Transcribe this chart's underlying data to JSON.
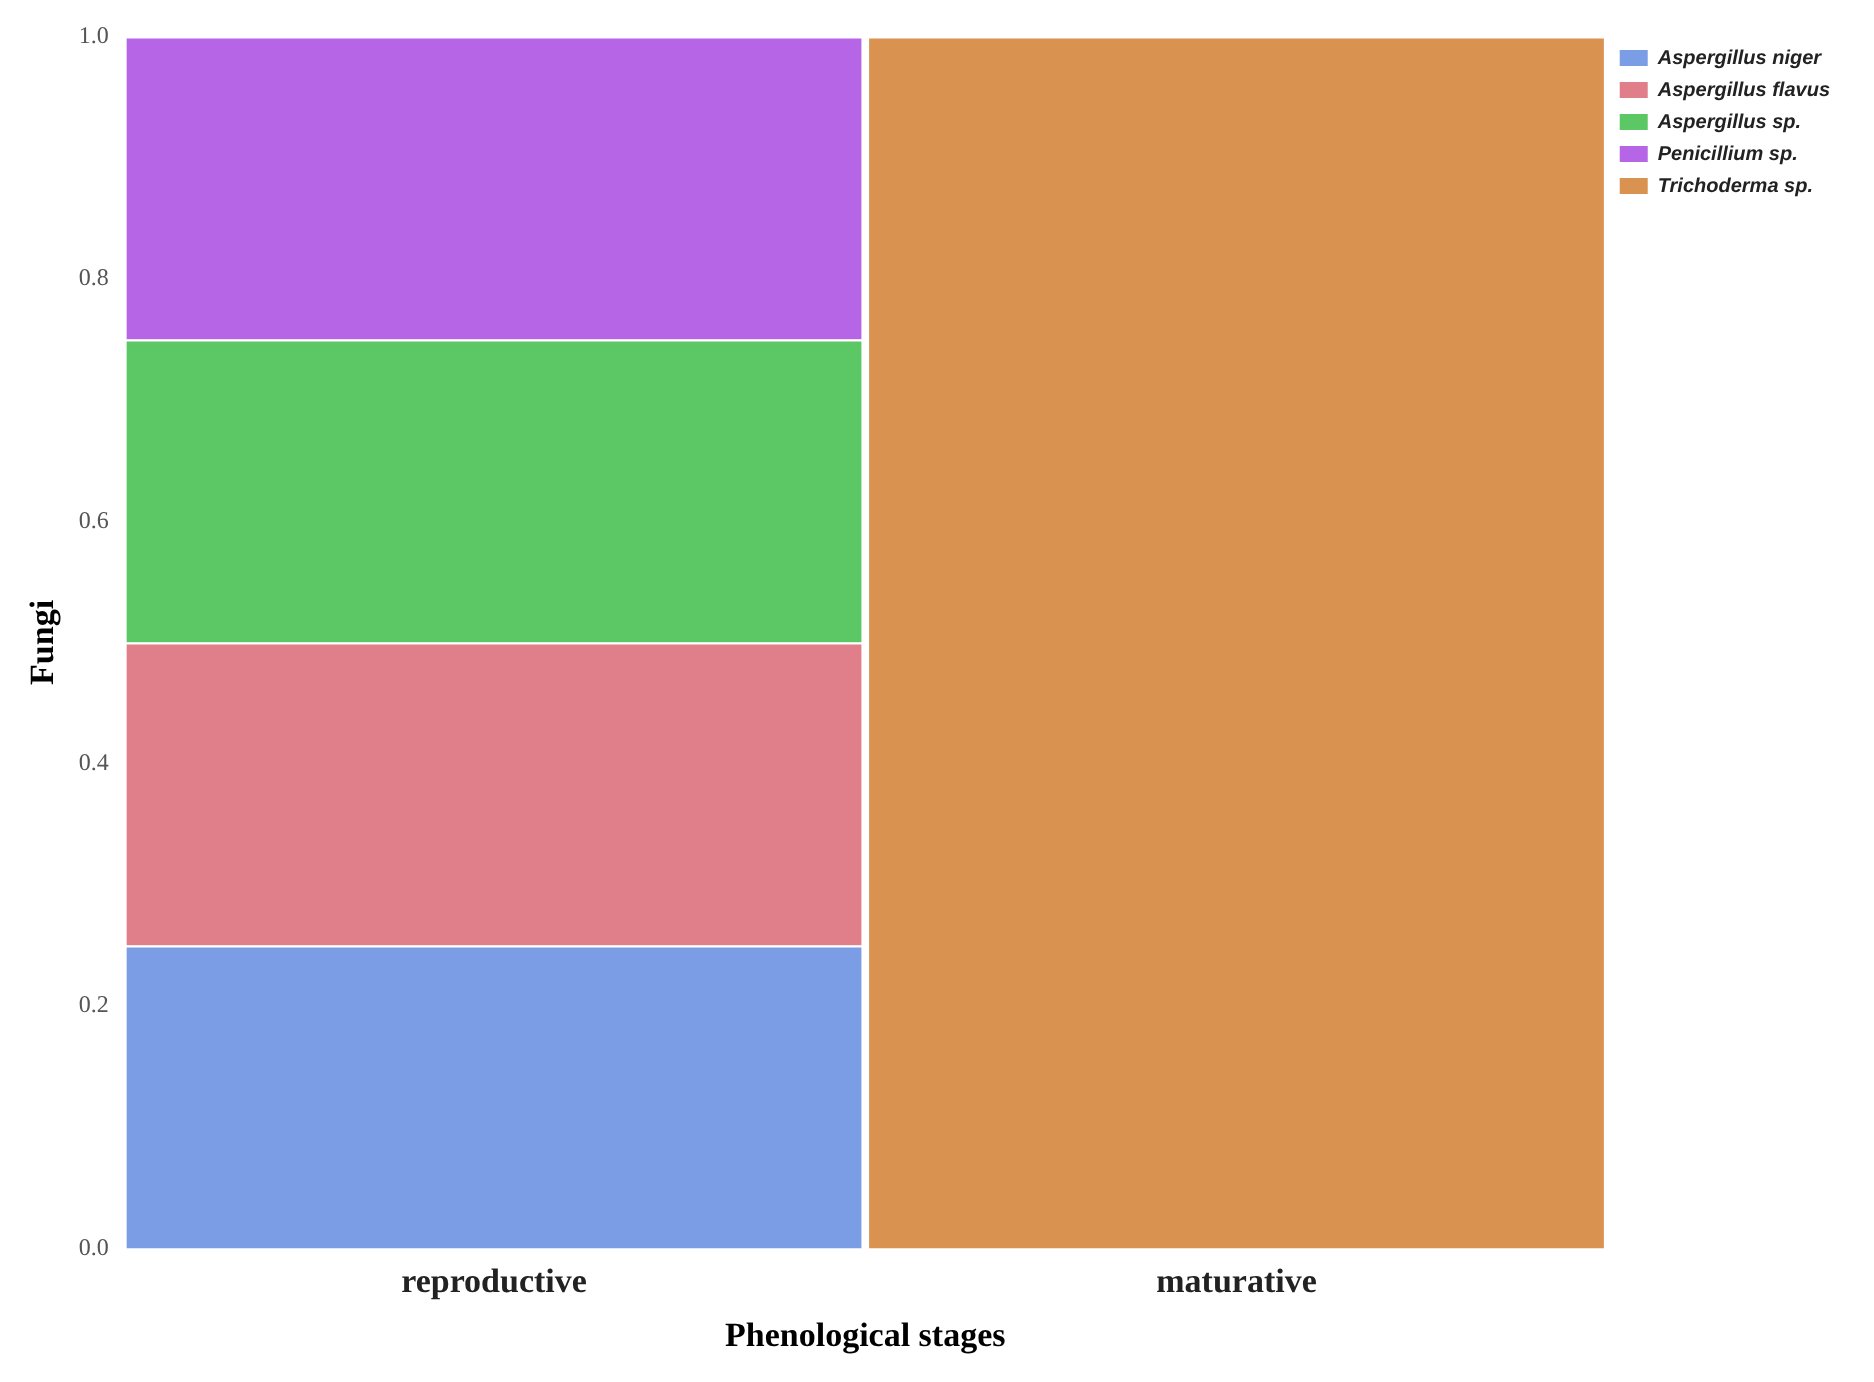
{
  "chart_data": {
    "type": "bar",
    "stacked": true,
    "categories": [
      "reproductive",
      "maturative"
    ],
    "xlabel": "Phenological stages",
    "ylabel": "Fungi",
    "series": [
      {
        "name": "Aspergillus niger",
        "color": "#7b9de6",
        "values": [
          0.25,
          0
        ]
      },
      {
        "name": "Aspergillus flavus",
        "color": "#e07e8a",
        "values": [
          0.25,
          0
        ]
      },
      {
        "name": "Aspergillus sp.",
        "color": "#5cc765",
        "values": [
          0.25,
          0
        ]
      },
      {
        "name": "Penicillium sp.",
        "color": "#b565e6",
        "values": [
          0.25,
          0
        ]
      },
      {
        "name": "Trichoderma sp.",
        "color": "#d9924f",
        "values": [
          0,
          1
        ]
      }
    ],
    "ylim": [
      0,
      1
    ],
    "yticks": [
      {
        "value": 0,
        "label": "0.0"
      },
      {
        "value": 0.2,
        "label": "0.2"
      },
      {
        "value": 0.4,
        "label": "0.4"
      },
      {
        "value": 0.6,
        "label": "0.6"
      },
      {
        "value": 0.8,
        "label": "0.8"
      },
      {
        "value": 1,
        "label": "1.0"
      }
    ],
    "grid": false,
    "legend": "top right"
  }
}
